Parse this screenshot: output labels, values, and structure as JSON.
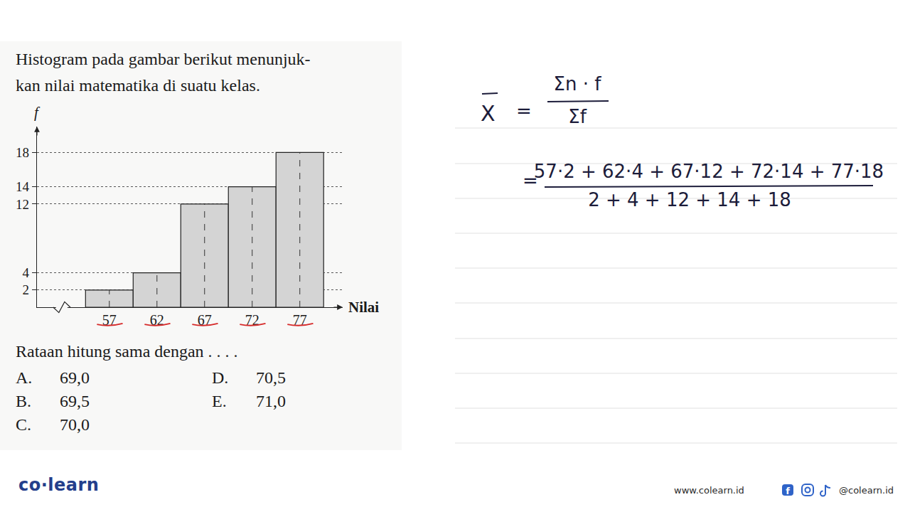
{
  "question": {
    "lines": [
      "Histogram pada gambar berikut menunjuk-",
      "kan nilai matematika di suatu kelas."
    ],
    "prompt": "Rataan hitung sama dengan . . . .",
    "options": [
      {
        "letter": "A.",
        "text": "69,0"
      },
      {
        "letter": "B.",
        "text": "69,5"
      },
      {
        "letter": "C.",
        "text": "70,0"
      },
      {
        "letter": "D.",
        "text": "70,5"
      },
      {
        "letter": "E.",
        "text": "71,0"
      }
    ]
  },
  "chart_data": {
    "type": "histogram",
    "bins": [
      54.5,
      59.5,
      64.5,
      69.5,
      74.5,
      79.5
    ],
    "values": [
      2,
      4,
      12,
      14,
      18
    ],
    "x_label": "Nilai",
    "y_label": "f",
    "color": "#d4d4d4",
    "xlim": [
      49.4,
      81.5
    ],
    "ylim": [
      0,
      21
    ],
    "xticks": [
      57,
      62,
      67,
      72,
      77
    ],
    "yticks": [
      2,
      4,
      12,
      14,
      18
    ],
    "grid": true
  },
  "solution": {
    "formula": {
      "lhs": "X",
      "eq": "=",
      "numerator": "Σn · f",
      "denominator": "Σf"
    },
    "expansion": {
      "eq": "=",
      "numerator": "57·2 + 62·4 + 67·12 + 72·14 + 77·18",
      "denominator": "2 + 4 + 12 + 14 + 18"
    }
  },
  "footer": {
    "logo": "co·learn",
    "website": "www.colearn.id",
    "handle": "@colearn.id"
  }
}
